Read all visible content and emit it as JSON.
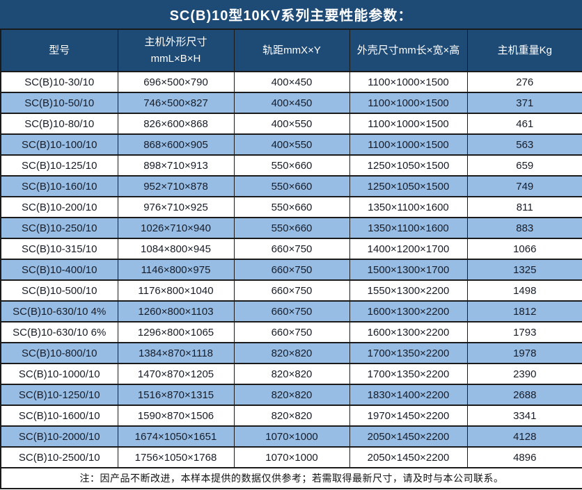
{
  "title": "SC(B)10型10KV系列主要性能参数：",
  "colors": {
    "header_bg": "#1e4a76",
    "row_bg": "#ffffff",
    "row_alt_bg": "#97bde4",
    "border": "#1a1a1a",
    "header_text": "#ffffff",
    "body_text": "#171c28"
  },
  "table": {
    "headers": [
      {
        "label": "型号"
      },
      {
        "label": "主机外形尺寸",
        "line2": "mmL×B×H"
      },
      {
        "label": "轨距mmX×Y"
      },
      {
        "label": "外壳尺寸mm长×宽×高"
      },
      {
        "label": "主机重量Kg"
      }
    ],
    "rows": [
      [
        "SC(B)10-30/10",
        "696×500×790",
        "400×450",
        "1100×1000×1500",
        "276"
      ],
      [
        "SC(B)10-50/10",
        "746×500×827",
        "400×450",
        "1100×1000×1500",
        "371"
      ],
      [
        "SC(B)10-80/10",
        "826×600×868",
        "400×550",
        "1100×1000×1500",
        "461"
      ],
      [
        "SC(B)10-100/10",
        "868×600×905",
        "400×550",
        "1100×1000×1500",
        "563"
      ],
      [
        "SC(B)10-125/10",
        "898×710×913",
        "550×660",
        "1250×1050×1500",
        "659"
      ],
      [
        "SC(B)10-160/10",
        "952×710×878",
        "550×660",
        "1250×1050×1500",
        "749"
      ],
      [
        "SC(B)10-200/10",
        "976×710×925",
        "550×660",
        "1350×1100×1600",
        "811"
      ],
      [
        "SC(B)10-250/10",
        "1026×710×940",
        "550×660",
        "1350×1100×1600",
        "883"
      ],
      [
        "SC(B)10-315/10",
        "1084×800×945",
        "660×750",
        "1400×1200×1700",
        "1066"
      ],
      [
        "SC(B)10-400/10",
        "1146×800×975",
        "660×750",
        "1500×1300×1700",
        "1325"
      ],
      [
        "SC(B)10-500/10",
        "1176×800×1040",
        "660×750",
        "1550×1300×2200",
        "1498"
      ],
      [
        "SC(B)10-630/10 4%",
        "1260×800×1103",
        "660×750",
        "1600×1300×2200",
        "1812"
      ],
      [
        "SC(B)10-630/10 6%",
        "1296×800×1065",
        "660×750",
        "1600×1300×2200",
        "1793"
      ],
      [
        "SC(B)10-800/10",
        "1384×870×1118",
        "820×820",
        "1700×1350×2200",
        "1978"
      ],
      [
        "SC(B)10-1000/10",
        "1470×870×1205",
        "820×820",
        "1700×1350×2200",
        "2390"
      ],
      [
        "SC(B)10-1250/10",
        "1516×870×1315",
        "820×820",
        "1830×1400×2200",
        "2688"
      ],
      [
        "SC(B)10-1600/10",
        "1590×870×1506",
        "820×820",
        "1970×1450×2200",
        "3341"
      ],
      [
        "SC(B)10-2000/10",
        "1674×1050×1651",
        "1070×1000",
        "2050×1450×2200",
        "4128"
      ],
      [
        "SC(B)10-2500/10",
        "1756×1050×1768",
        "1070×1000",
        "2050×1450×2200",
        "4896"
      ]
    ]
  },
  "footnote": "注：因产品不断改进，本样本提供的数据仅供参考；若需取得最新尺寸，请及时与本公司联系。"
}
